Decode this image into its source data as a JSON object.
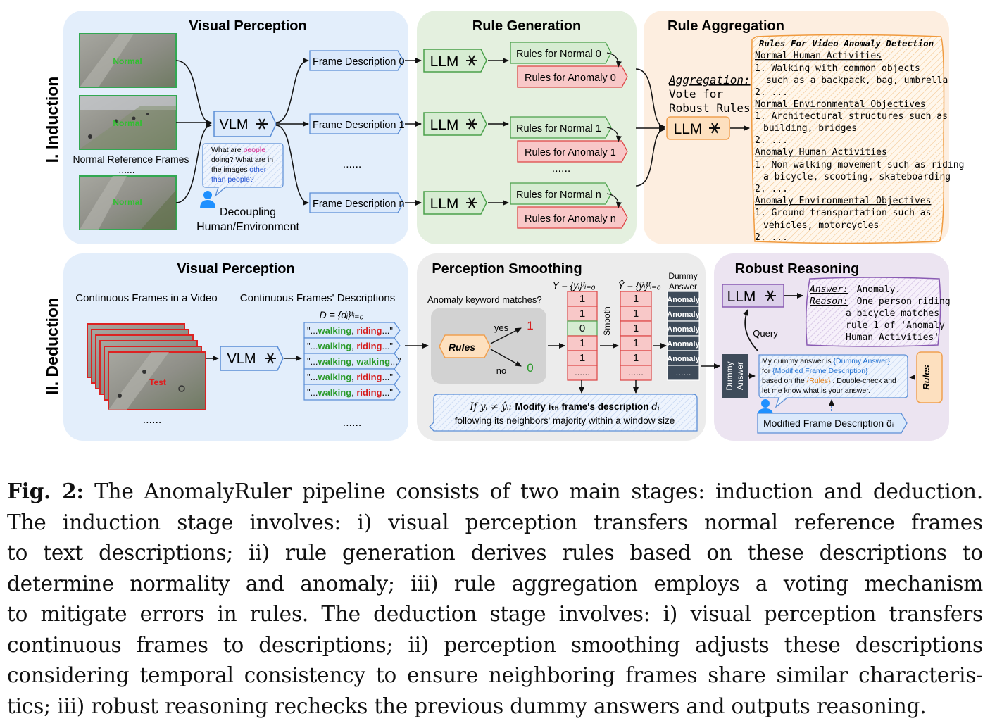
{
  "rows": {
    "induction": "I. Induction",
    "deduction": "II. Deduction"
  },
  "induction": {
    "visual_perception": {
      "title": "Visual Perception",
      "frame_label": "Normal",
      "frames_caption": "Normal Reference Frames",
      "ellipsis": "......",
      "vlm": "VLM",
      "prompt_lines": [
        "What are",
        "people",
        "doing? What are in",
        "the images",
        "other",
        "than people?"
      ],
      "decoupling": [
        "Decoupling",
        "Human/Environment"
      ],
      "descriptions": [
        "Frame Description 0",
        "Frame Description 1",
        "Frame Description n"
      ],
      "desc_ellipsis": "......"
    },
    "rule_generation": {
      "title": "Rule Generation",
      "llm": "LLM",
      "normal": [
        "Rules for Normal 0",
        "Rules for Normal 1",
        "Rules for Normal n"
      ],
      "anomaly": [
        "Rules for Anomaly 0",
        "Rules for Anomaly 1",
        "Rules for Anomaly n"
      ],
      "ellipsis": "......"
    },
    "rule_aggregation": {
      "title": "Rule Aggregation",
      "aggregation_label": "Aggregation:",
      "vote_lines": [
        "Vote for",
        "Robust Rules"
      ],
      "llm": "LLM",
      "doc_title": "Rules For Video Anomaly Detection",
      "sections": [
        {
          "heading": "Normal Human Activities",
          "lines": [
            "1. Walking with common objects",
            "such as a backpack, bag, umbrella",
            "2. ..."
          ]
        },
        {
          "heading": "Normal Environmental Objectives",
          "lines": [
            "1. Architectural structures such as",
            "building, bridges",
            "2. ..."
          ]
        },
        {
          "heading": "Anomaly Human Activities",
          "lines": [
            "1. Non-walking movement such as riding",
            "a bicycle, scooting, skateboarding",
            "2. ..."
          ]
        },
        {
          "heading": "Anomaly Environmental Objectives",
          "lines": [
            "1. Ground transportation such as",
            "vehicles, motorcycles",
            "2. ..."
          ]
        }
      ]
    }
  },
  "deduction": {
    "visual_perception": {
      "title": "Visual Perception",
      "frames_label": "Continuous Frames in a Video",
      "desc_label": "Continuous Frames' Descriptions",
      "frame_label": "Test",
      "ellipsis": "......",
      "vlm": "VLM",
      "d_eq": "D = {dᵢ}ᵗᵢ₌₀",
      "desc_items": [
        {
          "pre": "\"...",
          "a": "walking",
          "sep": ", ",
          "b": "riding",
          "post": "...\"",
          "b_color": "#d62020"
        },
        {
          "pre": "\"...",
          "a": "walking",
          "sep": ", ",
          "b": "riding",
          "post": "...\"",
          "b_color": "#d62020"
        },
        {
          "pre": "\"...",
          "a": "walking",
          "sep": ", ",
          "b": "walking",
          "post": "...\"",
          "b_color": "#2a9a2a"
        },
        {
          "pre": "\"...",
          "a": "walking",
          "sep": ", ",
          "b": "riding",
          "post": "...\"",
          "b_color": "#d62020"
        },
        {
          "pre": "\"...",
          "a": "walking",
          "sep": ", ",
          "b": "riding",
          "post": "...\"",
          "b_color": "#d62020"
        }
      ],
      "desc_ellipsis": "......"
    },
    "perception_smoothing": {
      "title": "Perception Smoothing",
      "keyword_q": "Anomaly keyword matches?",
      "rules": "Rules",
      "yes": "yes",
      "no": "no",
      "yes_val": "1",
      "no_val": "0",
      "y_eq": "Y = {yᵢ}ᵗᵢ₌₀",
      "yhat_eq": "Ŷ = {ŷᵢ}ᵗᵢ₌₀",
      "smooth": "Smooth",
      "y_values": [
        "1",
        "1",
        "0",
        "1",
        "1"
      ],
      "yhat_values": [
        "1",
        "1",
        "1",
        "1",
        "1"
      ],
      "col_ellipsis": "......",
      "dummy_header": [
        "Dummy",
        "Answer"
      ],
      "dummy_values": [
        "Anomaly",
        "Anomaly",
        "Anomaly",
        "Anomaly",
        "Anomaly"
      ],
      "note_line1": {
        "pre": "If yᵢ ≠ ŷᵢ: ",
        "bold": "Modify iₜₕ  frame's description",
        "post": "  dᵢ"
      },
      "note_line2": "following its neighbors' majority within a window size"
    },
    "robust_reasoning": {
      "title": "Robust Reasoning",
      "llm": "LLM",
      "answer_label": "Answer:",
      "answer_value": "Anomaly.",
      "reason_label": "Reason:",
      "reason_lines": [
        "One person riding",
        "a bicycle matches",
        "rule 1 of 'Anomaly",
        "Human Activities'"
      ],
      "query": "Query",
      "dummy_block": [
        "Dummy",
        "Answer"
      ],
      "prompt": {
        "l1_pre": "My dummy answer is ",
        "l1_hl": "{Dummy Answer}",
        "l2_pre": "for ",
        "l2_hl": "{Modified Frame Description}",
        "l3_pre": "based on the ",
        "l3_hl": "{Rules}",
        "l3_post": ". Double-check and",
        "l4": "let me know what is your answer."
      },
      "rules_tag": "Rules",
      "modified": "Modified Frame Description d̂ᵢ"
    }
  },
  "caption": {
    "label": "Fig. 2:",
    "lines": [
      " The AnomalyRuler pipeline consists of two main stages: induction and deduction.",
      "The induction stage involves: i) visual perception transfers normal reference frames",
      "to text descriptions; ii) rule generation derives rules based on these descriptions to",
      "determine normality and anomaly; iii) rule aggregation employs a voting mechanism",
      "to mitigate errors in rules. The deduction stage involves: i) visual perception transfers",
      "continuous frames to descriptions; ii) perception smoothing adjusts these descriptions",
      "considering temporal consistency to ensure neighboring frames share similar characteris-",
      "tics; iii) robust reasoning rechecks the previous dummy answers and outputs reasoning."
    ]
  },
  "colors": {
    "blue_panel": "#e3eefb",
    "green_panel": "#e4f0df",
    "orange_panel": "#fdeee0",
    "grey_panel": "#ececec",
    "purple_panel": "#ece4f1",
    "green_box": "#d6ecd2",
    "red_box": "#f8c8c8",
    "blue_box": "#dbe9fb",
    "orange_box": "#fde0bf",
    "purple_box": "#dcd0ea",
    "dark_box": "#3e4b5a"
  }
}
